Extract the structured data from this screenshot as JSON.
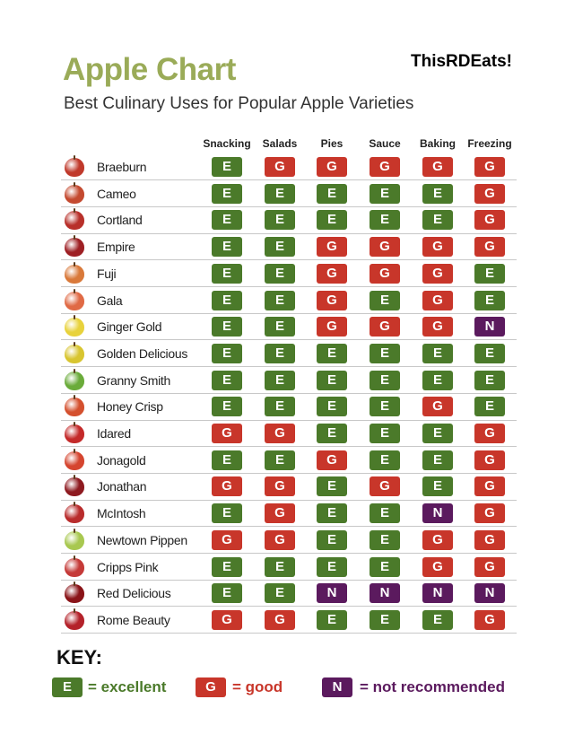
{
  "header": {
    "title": "Apple Chart",
    "subtitle": "Best Culinary Uses for Popular Apple Varieties",
    "brand": "ThisRDEats!"
  },
  "colors": {
    "E": "#4b7a2a",
    "G": "#c8362a",
    "N": "#5b1a5e",
    "title": "#9aab58"
  },
  "key": {
    "title": "KEY:",
    "items": [
      {
        "code": "E",
        "label": "= excellent",
        "color": "#4b7a2a"
      },
      {
        "code": "G",
        "label": "= good",
        "color": "#c8362a"
      },
      {
        "code": "N",
        "label": "= not recommended",
        "color": "#5b1a5e"
      }
    ]
  },
  "chart_data": {
    "type": "table",
    "columns": [
      "Snacking",
      "Salads",
      "Pies",
      "Sauce",
      "Baking",
      "Freezing"
    ],
    "rows": [
      {
        "name": "Braeburn",
        "apple_color": "#c0392b",
        "ratings": [
          "E",
          "G",
          "G",
          "G",
          "G",
          "G"
        ]
      },
      {
        "name": "Cameo",
        "apple_color": "#c44a30",
        "ratings": [
          "E",
          "E",
          "E",
          "E",
          "E",
          "G"
        ]
      },
      {
        "name": "Cortland",
        "apple_color": "#b8302a",
        "ratings": [
          "E",
          "E",
          "E",
          "E",
          "E",
          "G"
        ]
      },
      {
        "name": "Empire",
        "apple_color": "#9e1f24",
        "ratings": [
          "E",
          "E",
          "G",
          "G",
          "G",
          "G"
        ]
      },
      {
        "name": "Fuji",
        "apple_color": "#d9793a",
        "ratings": [
          "E",
          "E",
          "G",
          "G",
          "G",
          "E"
        ]
      },
      {
        "name": "Gala",
        "apple_color": "#e06a45",
        "ratings": [
          "E",
          "E",
          "G",
          "E",
          "G",
          "E"
        ]
      },
      {
        "name": "Ginger Gold",
        "apple_color": "#e8d23c",
        "ratings": [
          "E",
          "E",
          "G",
          "G",
          "G",
          "N"
        ]
      },
      {
        "name": "Golden Delicious",
        "apple_color": "#d8c530",
        "ratings": [
          "E",
          "E",
          "E",
          "E",
          "E",
          "E"
        ]
      },
      {
        "name": "Granny Smith",
        "apple_color": "#6aab3a",
        "ratings": [
          "E",
          "E",
          "E",
          "E",
          "E",
          "E"
        ]
      },
      {
        "name": "Honey Crisp",
        "apple_color": "#d4502e",
        "ratings": [
          "E",
          "E",
          "E",
          "E",
          "G",
          "E"
        ]
      },
      {
        "name": "Idared",
        "apple_color": "#c42a2a",
        "ratings": [
          "G",
          "G",
          "E",
          "E",
          "E",
          "G"
        ]
      },
      {
        "name": "Jonagold",
        "apple_color": "#d5452f",
        "ratings": [
          "E",
          "E",
          "G",
          "E",
          "E",
          "G"
        ]
      },
      {
        "name": "Jonathan",
        "apple_color": "#8e1a20",
        "ratings": [
          "G",
          "G",
          "E",
          "G",
          "E",
          "G"
        ]
      },
      {
        "name": "McIntosh",
        "apple_color": "#b92c2c",
        "ratings": [
          "E",
          "G",
          "E",
          "E",
          "N",
          "G"
        ]
      },
      {
        "name": "Newtown Pippen",
        "apple_color": "#a8c850",
        "ratings": [
          "G",
          "G",
          "E",
          "E",
          "G",
          "G"
        ]
      },
      {
        "name": "Cripps Pink",
        "apple_color": "#c53a38",
        "ratings": [
          "E",
          "E",
          "E",
          "E",
          "G",
          "G"
        ]
      },
      {
        "name": "Red Delicious",
        "apple_color": "#8a1418",
        "ratings": [
          "E",
          "E",
          "N",
          "N",
          "N",
          "N"
        ]
      },
      {
        "name": "Rome Beauty",
        "apple_color": "#b4222a",
        "ratings": [
          "G",
          "G",
          "E",
          "E",
          "E",
          "G"
        ]
      }
    ]
  }
}
